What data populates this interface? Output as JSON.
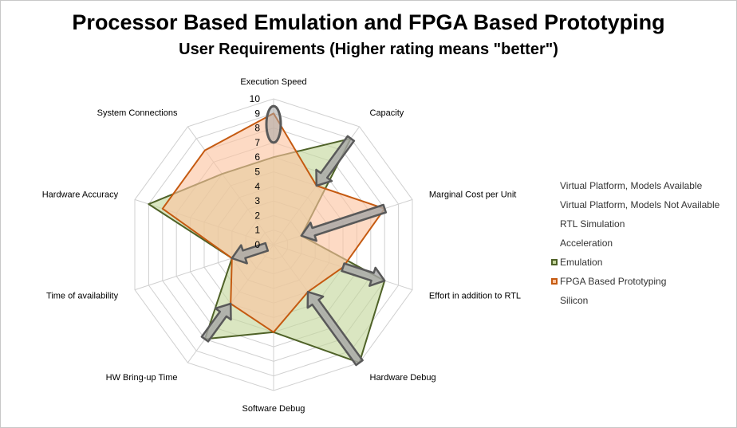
{
  "chart_data": {
    "type": "radar",
    "title": "Processor Based Emulation and FPGA Based Prototyping",
    "subtitle": "User Requirements (Higher rating means \"better\")",
    "categories": [
      "Execution Speed",
      "Capacity",
      "Marginal Cost per Unit",
      "Effort in addition to RTL",
      "Hardware Debug",
      "Software Debug",
      "HW Bring-up Time",
      "Time of availability",
      "Hardware Accuracy",
      "System Connections"
    ],
    "radial_range": [
      0,
      10
    ],
    "ticks": [
      "0",
      "1",
      "2",
      "3",
      "4",
      "5",
      "6",
      "7",
      "8",
      "9",
      "10"
    ],
    "gridlines": true,
    "legend_position": "right",
    "legend": [
      "Virtual Platform, Models Available",
      "Virtual Platform, Models Not Available",
      "RTL Simulation",
      "Acceleration",
      "Emulation",
      "FPGA Based Prototyping",
      "Silicon"
    ],
    "series": [
      {
        "name": "Emulation",
        "values": [
          6,
          9,
          2,
          8,
          10,
          6,
          8,
          3,
          9,
          6
        ],
        "color": "#4f6228",
        "fill": "#c3d69b"
      },
      {
        "name": "FPGA Based Prototyping",
        "values": [
          9,
          5,
          8,
          5,
          4,
          6,
          5,
          3,
          8,
          8
        ],
        "color": "#c55a11",
        "fill": "#fbc49f"
      }
    ],
    "annotations": [
      {
        "type": "highlight-ellipse",
        "axis": "Execution Speed",
        "from": 7,
        "to": 9.5
      },
      {
        "type": "arrow",
        "axis": "Capacity",
        "from": 9,
        "to": 5
      },
      {
        "type": "arrow",
        "axis": "Marginal Cost per Unit",
        "from": 8,
        "to": 2
      },
      {
        "type": "arrow",
        "axis": "Effort in addition to RTL",
        "from": 5,
        "to": 8
      },
      {
        "type": "arrow",
        "axis": "Hardware Debug",
        "from": 10,
        "to": 4
      },
      {
        "type": "arrow",
        "axis": "HW Bring-up Time",
        "from": 8,
        "to": 5
      },
      {
        "type": "arrow",
        "axis": "Time of availability",
        "from": 0.5,
        "to": 3
      }
    ]
  }
}
